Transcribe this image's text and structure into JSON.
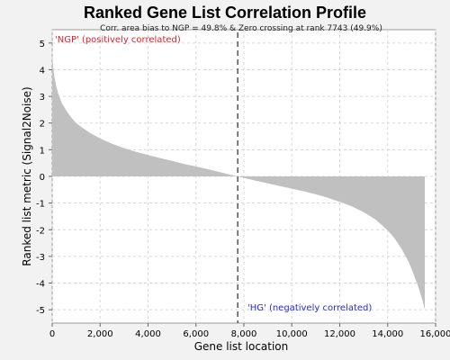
{
  "chart_data": {
    "type": "area",
    "title": "Ranked Gene List Correlation Profile",
    "xlabel": "Gene list location",
    "ylabel": "Ranked list metric (Signal2Noise)",
    "xlim": [
      0,
      16000
    ],
    "ylim": [
      -5.5,
      5.5
    ],
    "x_ticks": [
      0,
      2000,
      4000,
      6000,
      8000,
      10000,
      12000,
      14000,
      16000
    ],
    "x_tick_labels": [
      "0",
      "2,000",
      "4,000",
      "6,000",
      "8,000",
      "10,000",
      "12,000",
      "14,000",
      "16,000"
    ],
    "y_ticks": [
      5,
      4,
      3,
      2,
      1,
      0,
      -1,
      -2,
      -3,
      -4,
      -5
    ],
    "grid": true,
    "annotation": "Corr. area bias to NGP = 49.8% & Zero crossing at rank 7743 (49.9%)",
    "zero_crossing_rank": 7743,
    "positive_label": "'NGP' (positively correlated)",
    "negative_label": "'HG' (negatively correlated)",
    "fill_color": "#c0c0c0",
    "positive_color": "#e0202a",
    "negative_color": "#2a2ad0",
    "series": [
      {
        "x": [
          0,
          30,
          80,
          150,
          250,
          400,
          600,
          800,
          1000,
          1300,
          1600,
          2000,
          2500,
          3000,
          3500,
          4000,
          4500,
          5000,
          5500,
          6000,
          6500,
          7000,
          7400,
          7743,
          8000,
          8500,
          9000,
          9500,
          10000,
          10500,
          11000,
          11500,
          12000,
          12500,
          13000,
          13500,
          14000,
          14300,
          14600,
          14900,
          15100,
          15300,
          15450,
          15550
        ],
        "y": [
          4.6,
          4.2,
          3.8,
          3.45,
          3.1,
          2.75,
          2.45,
          2.2,
          2.0,
          1.8,
          1.62,
          1.42,
          1.22,
          1.06,
          0.92,
          0.8,
          0.69,
          0.58,
          0.47,
          0.37,
          0.27,
          0.16,
          0.07,
          0.0,
          -0.06,
          -0.16,
          -0.26,
          -0.36,
          -0.46,
          -0.56,
          -0.67,
          -0.8,
          -0.95,
          -1.12,
          -1.34,
          -1.62,
          -2.02,
          -2.34,
          -2.74,
          -3.25,
          -3.7,
          -4.2,
          -4.65,
          -4.98
        ]
      }
    ]
  }
}
